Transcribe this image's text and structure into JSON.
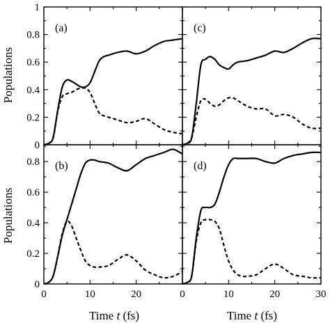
{
  "chart_data": {
    "type": "line",
    "xlabel_prefix": "Time ",
    "xlabel_var": "t",
    "xlabel_unit": " (fs)",
    "ylabel": "Populations",
    "xlim": [
      0,
      30
    ],
    "ylim_top": [
      0,
      1
    ],
    "ylim_bottom": [
      0,
      0.9
    ],
    "x_ticks": [
      0,
      10,
      20,
      30
    ],
    "x_tick_labels_left": [
      "0",
      "10",
      "20",
      ""
    ],
    "x_tick_labels_right": [
      "0",
      "10",
      "20",
      "30"
    ],
    "y_ticks_top": [
      0,
      0.2,
      0.4,
      0.6,
      0.8,
      1
    ],
    "y_tick_labels_top": [
      "0",
      "0.2",
      "0.4",
      "0.6",
      "0.8",
      "1"
    ],
    "y_ticks_bottom": [
      0,
      0.2,
      0.4,
      0.6,
      0.8
    ],
    "y_tick_labels_bottom": [
      "0",
      "0.2",
      "0.4",
      "0.6",
      "0.8"
    ],
    "panels": [
      {
        "label": "(a)",
        "series": [
          {
            "style": "solid",
            "x": [
              0,
              1,
              2,
              3,
              4,
              5,
              6,
              7,
              8,
              9,
              10,
              11,
              12,
              13,
              14,
              16,
              18,
              20,
              22,
              24,
              26,
              28,
              30
            ],
            "y": [
              0,
              0.01,
              0.05,
              0.25,
              0.42,
              0.47,
              0.46,
              0.44,
              0.42,
              0.42,
              0.45,
              0.53,
              0.61,
              0.64,
              0.65,
              0.67,
              0.68,
              0.66,
              0.68,
              0.72,
              0.75,
              0.76,
              0.77
            ]
          },
          {
            "style": "dashed",
            "x": [
              0,
              1,
              2,
              3,
              4,
              5,
              6,
              7,
              8,
              9,
              10,
              11,
              12,
              13,
              14,
              16,
              18,
              20,
              22,
              24,
              26,
              28,
              30
            ],
            "y": [
              0,
              0.01,
              0.05,
              0.24,
              0.35,
              0.37,
              0.38,
              0.4,
              0.41,
              0.41,
              0.38,
              0.3,
              0.23,
              0.21,
              0.2,
              0.18,
              0.16,
              0.17,
              0.19,
              0.15,
              0.11,
              0.09,
              0.08
            ]
          }
        ]
      },
      {
        "label": "(c)",
        "series": [
          {
            "style": "solid",
            "x": [
              0,
              1,
              2,
              3,
              4,
              5,
              6,
              7,
              8,
              9,
              10,
              11,
              12,
              14,
              16,
              18,
              20,
              22,
              24,
              26,
              28,
              30
            ],
            "y": [
              0,
              0.01,
              0.05,
              0.3,
              0.58,
              0.62,
              0.64,
              0.62,
              0.58,
              0.56,
              0.55,
              0.58,
              0.6,
              0.61,
              0.63,
              0.65,
              0.68,
              0.67,
              0.7,
              0.74,
              0.77,
              0.77
            ]
          },
          {
            "style": "dashed",
            "x": [
              0,
              1,
              2,
              3,
              4,
              5,
              6,
              7,
              8,
              9,
              10,
              11,
              12,
              14,
              16,
              18,
              20,
              22,
              24,
              26,
              28,
              30
            ],
            "y": [
              0,
              0.01,
              0.05,
              0.2,
              0.32,
              0.33,
              0.3,
              0.28,
              0.29,
              0.32,
              0.34,
              0.34,
              0.32,
              0.28,
              0.26,
              0.26,
              0.21,
              0.22,
              0.2,
              0.15,
              0.12,
              0.12
            ]
          }
        ]
      },
      {
        "label": "(b)",
        "series": [
          {
            "style": "solid",
            "x": [
              0,
              1,
              2,
              3,
              4,
              5,
              6,
              7,
              8,
              9,
              10,
              11,
              12,
              14,
              16,
              18,
              20,
              22,
              24,
              26,
              28,
              30
            ],
            "y": [
              0,
              0.01,
              0.05,
              0.18,
              0.32,
              0.42,
              0.52,
              0.62,
              0.72,
              0.79,
              0.81,
              0.81,
              0.8,
              0.79,
              0.76,
              0.74,
              0.78,
              0.82,
              0.84,
              0.86,
              0.88,
              0.85
            ]
          },
          {
            "style": "dashed",
            "x": [
              0,
              1,
              2,
              3,
              4,
              5,
              6,
              7,
              8,
              9,
              10,
              11,
              12,
              14,
              16,
              18,
              20,
              22,
              24,
              26,
              28,
              30
            ],
            "y": [
              0,
              0.01,
              0.05,
              0.18,
              0.33,
              0.41,
              0.38,
              0.3,
              0.22,
              0.15,
              0.12,
              0.11,
              0.11,
              0.12,
              0.16,
              0.19,
              0.15,
              0.09,
              0.06,
              0.04,
              0.05,
              0.08
            ]
          }
        ]
      },
      {
        "label": "(d)",
        "series": [
          {
            "style": "solid",
            "x": [
              0,
              1,
              2,
              3,
              4,
              5,
              6,
              7,
              8,
              9,
              10,
              11,
              12,
              13,
              14,
              16,
              18,
              20,
              22,
              24,
              26,
              28,
              30
            ],
            "y": [
              0,
              0.01,
              0.05,
              0.3,
              0.48,
              0.5,
              0.5,
              0.52,
              0.6,
              0.7,
              0.78,
              0.82,
              0.82,
              0.82,
              0.82,
              0.82,
              0.8,
              0.79,
              0.82,
              0.84,
              0.85,
              0.86,
              0.86
            ]
          },
          {
            "style": "dashed",
            "x": [
              0,
              1,
              2,
              3,
              4,
              5,
              6,
              7,
              8,
              9,
              10,
              11,
              12,
              13,
              14,
              16,
              18,
              20,
              22,
              24,
              26,
              28,
              30
            ],
            "y": [
              0,
              0.01,
              0.05,
              0.28,
              0.4,
              0.42,
              0.42,
              0.41,
              0.36,
              0.25,
              0.15,
              0.09,
              0.06,
              0.05,
              0.05,
              0.06,
              0.1,
              0.13,
              0.1,
              0.06,
              0.05,
              0.04,
              0.04
            ]
          }
        ]
      }
    ]
  }
}
